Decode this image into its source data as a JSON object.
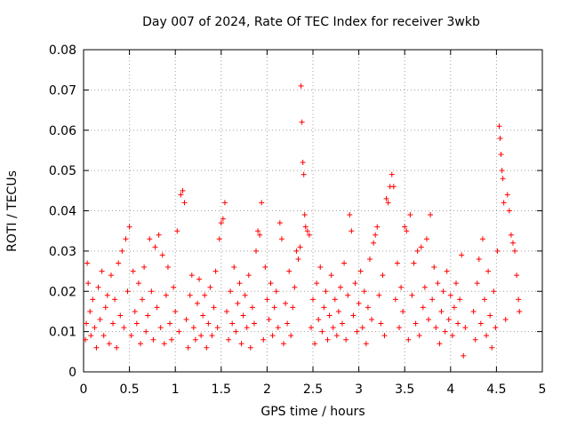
{
  "chart_data": {
    "type": "scatter",
    "title": "Day 007 of 2024, Rate Of TEC Index for receiver 3wkb",
    "xlabel": "GPS time / hours",
    "ylabel": "ROTI / TECUs",
    "xlim": [
      0,
      5
    ],
    "ylim": [
      0,
      0.08
    ],
    "x_ticks": [
      0,
      0.5,
      1,
      1.5,
      2,
      2.5,
      3,
      3.5,
      4,
      4.5,
      5
    ],
    "y_ticks": [
      0,
      0.01,
      0.02,
      0.03,
      0.04,
      0.05,
      0.06,
      0.07,
      0.08
    ],
    "grid": true,
    "marker": "+",
    "color": "#ff0000",
    "series": [
      {
        "name": "ROTI",
        "points": [
          [
            0.02,
            0.008
          ],
          [
            0.03,
            0.012
          ],
          [
            0.04,
            0.027
          ],
          [
            0.05,
            0.022
          ],
          [
            0.07,
            0.015
          ],
          [
            0.08,
            0.009
          ],
          [
            0.1,
            0.018
          ],
          [
            0.12,
            0.011
          ],
          [
            0.14,
            0.006
          ],
          [
            0.16,
            0.021
          ],
          [
            0.18,
            0.013
          ],
          [
            0.2,
            0.025
          ],
          [
            0.22,
            0.009
          ],
          [
            0.24,
            0.016
          ],
          [
            0.26,
            0.019
          ],
          [
            0.28,
            0.007
          ],
          [
            0.3,
            0.024
          ],
          [
            0.32,
            0.012
          ],
          [
            0.34,
            0.018
          ],
          [
            0.36,
            0.006
          ],
          [
            0.38,
            0.027
          ],
          [
            0.4,
            0.014
          ],
          [
            0.42,
            0.03
          ],
          [
            0.44,
            0.011
          ],
          [
            0.46,
            0.033
          ],
          [
            0.48,
            0.02
          ],
          [
            0.5,
            0.036
          ],
          [
            0.52,
            0.009
          ],
          [
            0.54,
            0.025
          ],
          [
            0.56,
            0.015
          ],
          [
            0.58,
            0.012
          ],
          [
            0.6,
            0.022
          ],
          [
            0.62,
            0.007
          ],
          [
            0.64,
            0.018
          ],
          [
            0.66,
            0.026
          ],
          [
            0.68,
            0.01
          ],
          [
            0.7,
            0.014
          ],
          [
            0.72,
            0.033
          ],
          [
            0.74,
            0.02
          ],
          [
            0.76,
            0.008
          ],
          [
            0.78,
            0.031
          ],
          [
            0.8,
            0.016
          ],
          [
            0.82,
            0.034
          ],
          [
            0.84,
            0.011
          ],
          [
            0.86,
            0.029
          ],
          [
            0.88,
            0.007
          ],
          [
            0.9,
            0.019
          ],
          [
            0.92,
            0.026
          ],
          [
            0.94,
            0.012
          ],
          [
            0.96,
            0.008
          ],
          [
            0.98,
            0.021
          ],
          [
            1.0,
            0.015
          ],
          [
            1.02,
            0.035
          ],
          [
            1.04,
            0.01
          ],
          [
            1.06,
            0.044
          ],
          [
            1.08,
            0.045
          ],
          [
            1.1,
            0.042
          ],
          [
            1.12,
            0.013
          ],
          [
            1.14,
            0.006
          ],
          [
            1.16,
            0.019
          ],
          [
            1.18,
            0.024
          ],
          [
            1.2,
            0.011
          ],
          [
            1.22,
            0.008
          ],
          [
            1.24,
            0.017
          ],
          [
            1.26,
            0.023
          ],
          [
            1.28,
            0.009
          ],
          [
            1.3,
            0.014
          ],
          [
            1.32,
            0.019
          ],
          [
            1.34,
            0.006
          ],
          [
            1.36,
            0.012
          ],
          [
            1.38,
            0.021
          ],
          [
            1.4,
            0.009
          ],
          [
            1.42,
            0.016
          ],
          [
            1.44,
            0.025
          ],
          [
            1.46,
            0.011
          ],
          [
            1.48,
            0.033
          ],
          [
            1.5,
            0.037
          ],
          [
            1.52,
            0.038
          ],
          [
            1.54,
            0.042
          ],
          [
            1.56,
            0.015
          ],
          [
            1.58,
            0.008
          ],
          [
            1.6,
            0.02
          ],
          [
            1.62,
            0.012
          ],
          [
            1.64,
            0.026
          ],
          [
            1.66,
            0.01
          ],
          [
            1.68,
            0.017
          ],
          [
            1.7,
            0.022
          ],
          [
            1.72,
            0.007
          ],
          [
            1.74,
            0.014
          ],
          [
            1.76,
            0.019
          ],
          [
            1.78,
            0.011
          ],
          [
            1.8,
            0.024
          ],
          [
            1.82,
            0.006
          ],
          [
            1.84,
            0.016
          ],
          [
            1.86,
            0.012
          ],
          [
            1.88,
            0.03
          ],
          [
            1.9,
            0.035
          ],
          [
            1.92,
            0.034
          ],
          [
            1.94,
            0.042
          ],
          [
            1.96,
            0.008
          ],
          [
            1.98,
            0.026
          ],
          [
            2.0,
            0.018
          ],
          [
            2.02,
            0.013
          ],
          [
            2.04,
            0.022
          ],
          [
            2.06,
            0.009
          ],
          [
            2.08,
            0.016
          ],
          [
            2.1,
            0.02
          ],
          [
            2.12,
            0.011
          ],
          [
            2.14,
            0.037
          ],
          [
            2.16,
            0.033
          ],
          [
            2.18,
            0.007
          ],
          [
            2.2,
            0.017
          ],
          [
            2.22,
            0.012
          ],
          [
            2.24,
            0.025
          ],
          [
            2.26,
            0.009
          ],
          [
            2.28,
            0.016
          ],
          [
            2.3,
            0.021
          ],
          [
            2.32,
            0.03
          ],
          [
            2.34,
            0.028
          ],
          [
            2.36,
            0.031
          ],
          [
            2.37,
            0.071
          ],
          [
            2.38,
            0.062
          ],
          [
            2.39,
            0.052
          ],
          [
            2.4,
            0.049
          ],
          [
            2.41,
            0.039
          ],
          [
            2.42,
            0.036
          ],
          [
            2.44,
            0.035
          ],
          [
            2.46,
            0.034
          ],
          [
            2.48,
            0.011
          ],
          [
            2.5,
            0.018
          ],
          [
            2.52,
            0.007
          ],
          [
            2.54,
            0.022
          ],
          [
            2.56,
            0.013
          ],
          [
            2.58,
            0.026
          ],
          [
            2.6,
            0.01
          ],
          [
            2.62,
            0.016
          ],
          [
            2.64,
            0.02
          ],
          [
            2.66,
            0.008
          ],
          [
            2.68,
            0.014
          ],
          [
            2.7,
            0.024
          ],
          [
            2.72,
            0.011
          ],
          [
            2.74,
            0.018
          ],
          [
            2.76,
            0.009
          ],
          [
            2.78,
            0.015
          ],
          [
            2.8,
            0.021
          ],
          [
            2.82,
            0.012
          ],
          [
            2.84,
            0.027
          ],
          [
            2.86,
            0.008
          ],
          [
            2.88,
            0.019
          ],
          [
            2.9,
            0.039
          ],
          [
            2.92,
            0.035
          ],
          [
            2.94,
            0.014
          ],
          [
            2.96,
            0.022
          ],
          [
            2.98,
            0.01
          ],
          [
            3.0,
            0.017
          ],
          [
            3.02,
            0.025
          ],
          [
            3.04,
            0.011
          ],
          [
            3.06,
            0.02
          ],
          [
            3.08,
            0.007
          ],
          [
            3.1,
            0.016
          ],
          [
            3.12,
            0.028
          ],
          [
            3.14,
            0.013
          ],
          [
            3.16,
            0.032
          ],
          [
            3.18,
            0.034
          ],
          [
            3.2,
            0.036
          ],
          [
            3.22,
            0.019
          ],
          [
            3.24,
            0.012
          ],
          [
            3.26,
            0.024
          ],
          [
            3.28,
            0.009
          ],
          [
            3.3,
            0.043
          ],
          [
            3.32,
            0.042
          ],
          [
            3.34,
            0.046
          ],
          [
            3.36,
            0.049
          ],
          [
            3.38,
            0.046
          ],
          [
            3.4,
            0.018
          ],
          [
            3.42,
            0.027
          ],
          [
            3.44,
            0.011
          ],
          [
            3.46,
            0.021
          ],
          [
            3.48,
            0.015
          ],
          [
            3.5,
            0.036
          ],
          [
            3.52,
            0.035
          ],
          [
            3.54,
            0.008
          ],
          [
            3.56,
            0.039
          ],
          [
            3.58,
            0.019
          ],
          [
            3.6,
            0.027
          ],
          [
            3.62,
            0.012
          ],
          [
            3.64,
            0.03
          ],
          [
            3.66,
            0.009
          ],
          [
            3.68,
            0.031
          ],
          [
            3.7,
            0.016
          ],
          [
            3.72,
            0.021
          ],
          [
            3.74,
            0.033
          ],
          [
            3.76,
            0.013
          ],
          [
            3.78,
            0.039
          ],
          [
            3.8,
            0.018
          ],
          [
            3.82,
            0.026
          ],
          [
            3.84,
            0.011
          ],
          [
            3.86,
            0.022
          ],
          [
            3.88,
            0.007
          ],
          [
            3.9,
            0.015
          ],
          [
            3.92,
            0.02
          ],
          [
            3.94,
            0.01
          ],
          [
            3.96,
            0.025
          ],
          [
            3.98,
            0.013
          ],
          [
            4.0,
            0.019
          ],
          [
            4.02,
            0.009
          ],
          [
            4.04,
            0.016
          ],
          [
            4.06,
            0.022
          ],
          [
            4.08,
            0.012
          ],
          [
            4.1,
            0.018
          ],
          [
            4.12,
            0.029
          ],
          [
            4.14,
            0.004
          ],
          [
            4.16,
            0.011
          ],
          [
            4.25,
            0.015
          ],
          [
            4.27,
            0.008
          ],
          [
            4.29,
            0.022
          ],
          [
            4.31,
            0.028
          ],
          [
            4.33,
            0.012
          ],
          [
            4.35,
            0.033
          ],
          [
            4.37,
            0.018
          ],
          [
            4.39,
            0.009
          ],
          [
            4.41,
            0.025
          ],
          [
            4.43,
            0.014
          ],
          [
            4.45,
            0.006
          ],
          [
            4.47,
            0.02
          ],
          [
            4.49,
            0.011
          ],
          [
            4.51,
            0.03
          ],
          [
            4.53,
            0.061
          ],
          [
            4.54,
            0.058
          ],
          [
            4.55,
            0.054
          ],
          [
            4.56,
            0.05
          ],
          [
            4.57,
            0.048
          ],
          [
            4.58,
            0.042
          ],
          [
            4.6,
            0.013
          ],
          [
            4.62,
            0.044
          ],
          [
            4.64,
            0.04
          ],
          [
            4.66,
            0.034
          ],
          [
            4.68,
            0.032
          ],
          [
            4.7,
            0.03
          ],
          [
            4.72,
            0.024
          ],
          [
            4.74,
            0.018
          ],
          [
            4.75,
            0.015
          ]
        ]
      }
    ]
  }
}
